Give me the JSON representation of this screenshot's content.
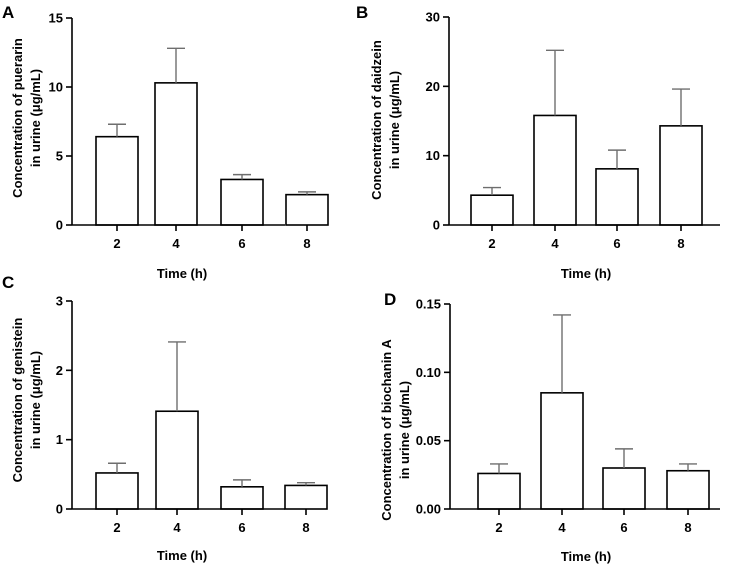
{
  "chart_data": [
    {
      "type": "bar",
      "panel": "A",
      "categories": [
        "2",
        "4",
        "6",
        "8"
      ],
      "values": [
        6.4,
        10.3,
        3.3,
        2.2
      ],
      "errors": [
        0.9,
        2.5,
        0.35,
        0.2
      ],
      "ylabel_line1": "Concentration of puerarin",
      "ylabel_line2": "in urine (μg/mL)",
      "xlabel": "Time (h)",
      "ylim": [
        0,
        15
      ],
      "yticks": [
        0,
        5,
        10,
        15
      ],
      "ytick_labels": [
        "0",
        "5",
        "10",
        "15"
      ],
      "grid": false
    },
    {
      "type": "bar",
      "panel": "B",
      "categories": [
        "2",
        "4",
        "6",
        "8"
      ],
      "values": [
        4.3,
        15.8,
        8.1,
        14.3
      ],
      "errors": [
        1.1,
        9.4,
        2.7,
        5.3
      ],
      "ylabel_line1": "Concentration of daidzein",
      "ylabel_line2": "in urine (μg/mL)",
      "xlabel": "Time (h)",
      "ylim": [
        0,
        30
      ],
      "yticks": [
        0,
        10,
        20,
        30
      ],
      "ytick_labels": [
        "0",
        "10",
        "20",
        "30"
      ],
      "grid": false
    },
    {
      "type": "bar",
      "panel": "C",
      "categories": [
        "2",
        "4",
        "6",
        "8"
      ],
      "values": [
        0.52,
        1.41,
        0.32,
        0.34
      ],
      "errors": [
        0.14,
        1.0,
        0.1,
        0.04
      ],
      "ylabel_line1": "Concentration of genistein",
      "ylabel_line2": "in urine (μg/mL)",
      "xlabel": "Time (h)",
      "ylim": [
        0,
        3
      ],
      "yticks": [
        0,
        1,
        2,
        3
      ],
      "ytick_labels": [
        "0",
        "1",
        "2",
        "3"
      ],
      "grid": false
    },
    {
      "type": "bar",
      "panel": "D",
      "categories": [
        "2",
        "4",
        "6",
        "8"
      ],
      "values": [
        0.026,
        0.085,
        0.03,
        0.028
      ],
      "errors": [
        0.007,
        0.057,
        0.014,
        0.005
      ],
      "ylabel_line1": "Concentration of biochanin A",
      "ylabel_line2": "in urine (μg/mL)",
      "xlabel": "Time (h)",
      "ylim": [
        0,
        0.15
      ],
      "yticks": [
        0,
        0.05,
        0.1,
        0.15
      ],
      "ytick_labels": [
        "0.00",
        "0.05",
        "0.10",
        "0.15"
      ],
      "grid": false
    }
  ]
}
